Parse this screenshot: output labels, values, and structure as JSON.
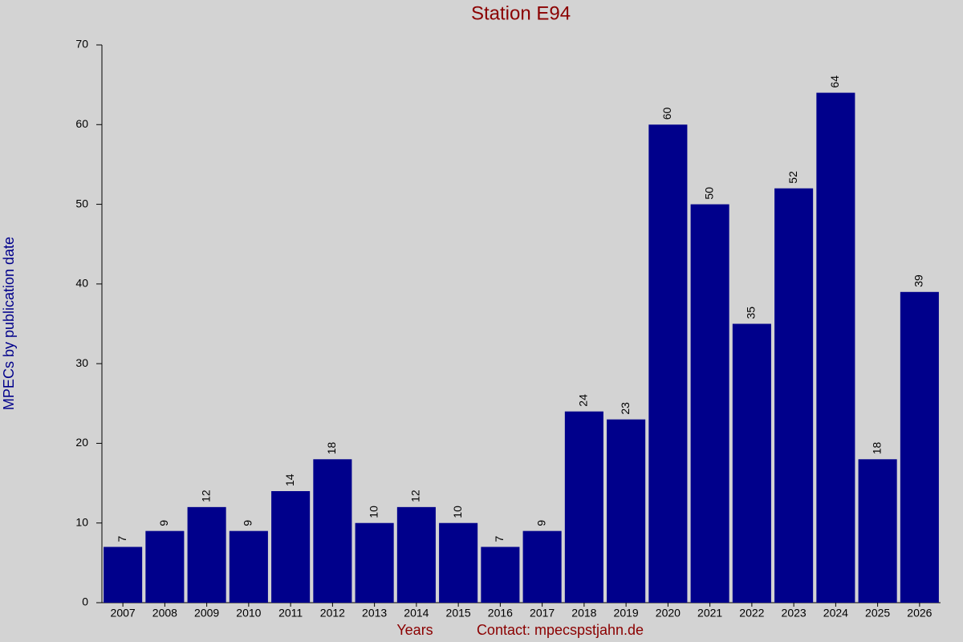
{
  "chart_data": {
    "type": "bar",
    "title": "Station E94",
    "x_label": "Years",
    "contact": "Contact: mpecspstjahn.de",
    "y_label": "MPECs by publication date",
    "categories": [
      "2007",
      "2008",
      "2009",
      "2010",
      "2011",
      "2012",
      "2013",
      "2014",
      "2015",
      "2016",
      "2017",
      "2018",
      "2019",
      "2020",
      "2021",
      "2022",
      "2023",
      "2024",
      "2025",
      "2026"
    ],
    "values": [
      7,
      9,
      12,
      9,
      14,
      18,
      10,
      12,
      10,
      7,
      9,
      24,
      23,
      60,
      50,
      35,
      52,
      64,
      18,
      39
    ],
    "color": "#00008b",
    "ylim": [
      0,
      70
    ],
    "yticks": [
      0,
      10,
      20,
      30,
      40,
      50,
      60,
      70
    ],
    "grid": false
  }
}
